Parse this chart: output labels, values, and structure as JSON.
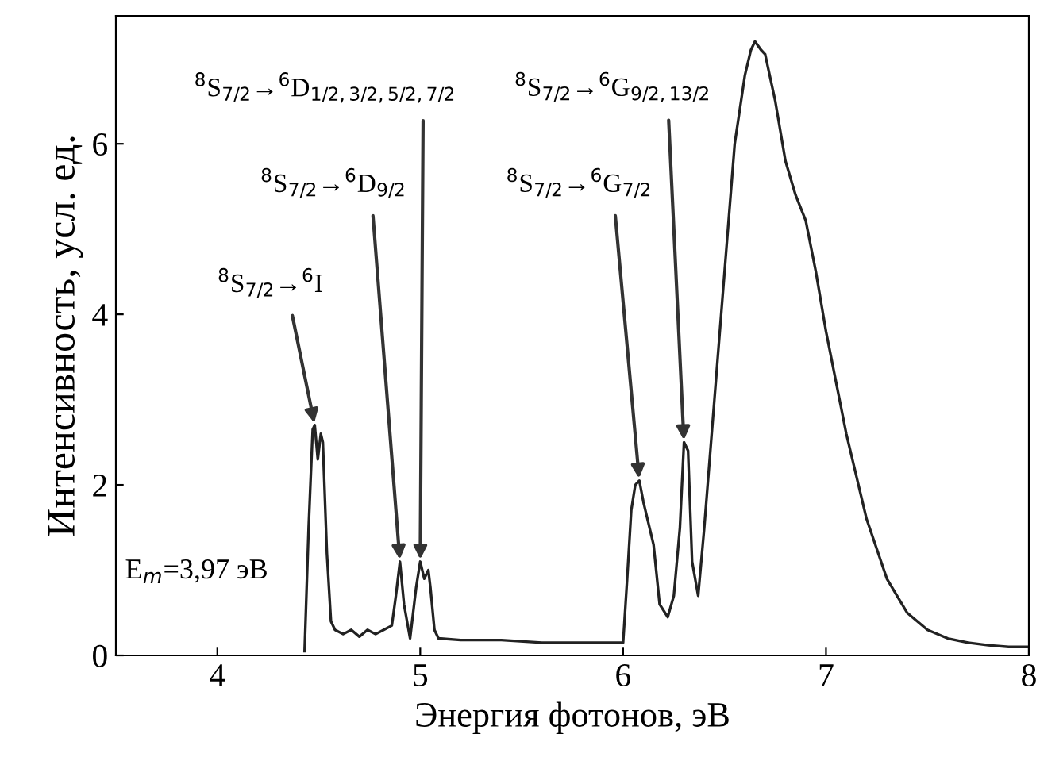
{
  "chart_data": {
    "type": "line",
    "xlabel": "Энергия фотонов, эВ",
    "ylabel": "Интенсивность, усл. ед.",
    "color": "#222222",
    "x": [
      4.43,
      4.45,
      4.47,
      4.48,
      4.495,
      4.51,
      4.52,
      4.54,
      4.56,
      4.58,
      4.62,
      4.66,
      4.7,
      4.74,
      4.78,
      4.82,
      4.86,
      4.88,
      4.9,
      4.92,
      4.95,
      4.98,
      5.0,
      5.02,
      5.04,
      5.05,
      5.07,
      5.09,
      5.2,
      5.4,
      5.6,
      5.8,
      5.95,
      6.0,
      6.02,
      6.04,
      6.06,
      6.08,
      6.1,
      6.12,
      6.15,
      6.18,
      6.22,
      6.25,
      6.28,
      6.3,
      6.32,
      6.34,
      6.37,
      6.4,
      6.45,
      6.5,
      6.55,
      6.6,
      6.63,
      6.65,
      6.68,
      6.7,
      6.75,
      6.8,
      6.85,
      6.9,
      6.95,
      7.0,
      7.05,
      7.1,
      7.15,
      7.2,
      7.3,
      7.4,
      7.5,
      7.6,
      7.7,
      7.8,
      7.9,
      8.0
    ],
    "values": [
      0.05,
      1.5,
      2.65,
      2.7,
      2.3,
      2.6,
      2.5,
      1.2,
      0.4,
      0.3,
      0.25,
      0.3,
      0.22,
      0.3,
      0.25,
      0.3,
      0.35,
      0.7,
      1.1,
      0.6,
      0.2,
      0.8,
      1.1,
      0.9,
      1.0,
      0.8,
      0.3,
      0.2,
      0.18,
      0.18,
      0.15,
      0.15,
      0.15,
      0.15,
      0.9,
      1.7,
      2.0,
      2.05,
      1.8,
      1.6,
      1.3,
      0.6,
      0.45,
      0.7,
      1.5,
      2.5,
      2.4,
      1.1,
      0.7,
      1.5,
      3.0,
      4.5,
      6.0,
      6.8,
      7.1,
      7.2,
      7.1,
      7.05,
      6.5,
      5.8,
      5.4,
      5.1,
      4.5,
      3.8,
      3.2,
      2.6,
      2.1,
      1.6,
      0.9,
      0.5,
      0.3,
      0.2,
      0.15,
      0.12,
      0.1,
      0.1
    ],
    "xlim": [
      3.5,
      8.0
    ],
    "xticks": [
      4,
      5,
      6,
      7,
      8
    ],
    "ylim": [
      0,
      7.5
    ],
    "yticks": [
      0,
      2,
      4,
      6
    ],
    "grid": false,
    "legend": false,
    "annotations": [
      {
        "text": "$^{8}$S$_{7/2}$→$^{6}$I",
        "x": 4.48,
        "y": 2.7
      },
      {
        "text": "$^{8}$S$_{7/2}$→$^{6}$D$_{9/2}$",
        "x": 4.9,
        "y": 1.1
      },
      {
        "text": "$^{8}$S$_{7/2}$→$^{6}$D$_{1/2,3/2,5/2,7/2}$",
        "x": 5.0,
        "y": 1.1
      },
      {
        "text": "$^{8}$S$_{7/2}$→$^{6}$G$_{7/2}$",
        "x": 6.08,
        "y": 2.05
      },
      {
        "text": "$^{8}$S$_{7/2}$→$^{6}$G$_{9/2,13/2}$",
        "x": 6.3,
        "y": 2.5
      },
      "E$_{m}$=3,97 эВ"
    ]
  }
}
